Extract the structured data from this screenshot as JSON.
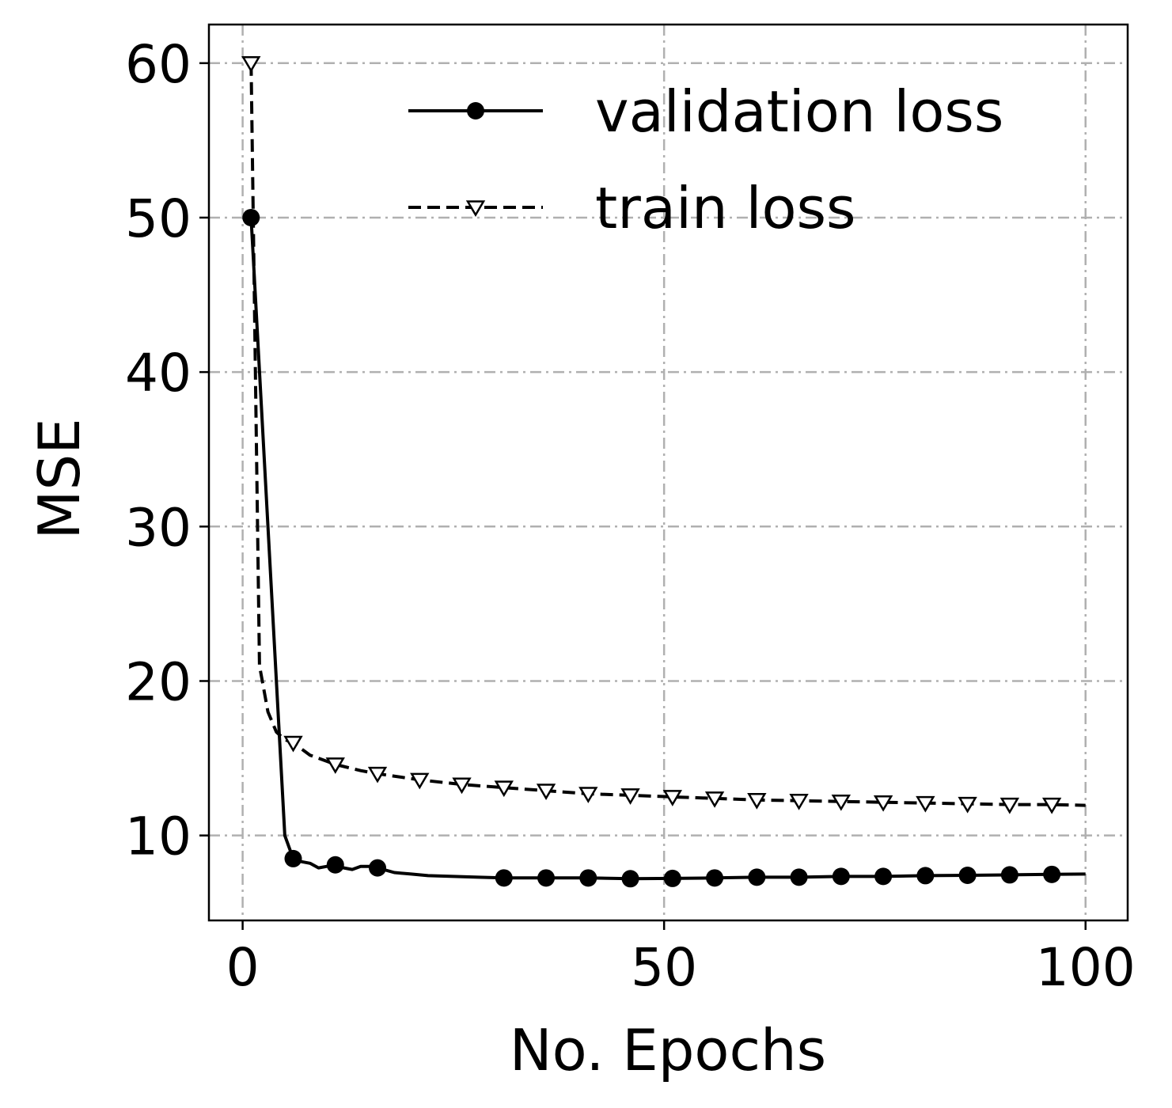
{
  "chart_data": {
    "type": "line",
    "title": "",
    "xlabel": "No. Epochs",
    "ylabel": "MSE",
    "xlim": [
      -4,
      105
    ],
    "ylim": [
      4.5,
      62.5
    ],
    "xticks": [
      0,
      50,
      100
    ],
    "yticks": [
      10,
      20,
      30,
      40,
      50,
      60
    ],
    "grid": true,
    "legend_position": "top-right",
    "series": [
      {
        "name": "validation loss",
        "style": "solid",
        "marker": "filled-circle",
        "color": "#000000",
        "x": [
          1,
          5,
          6,
          7,
          8,
          9,
          10,
          11,
          12,
          13,
          14,
          15,
          16,
          18,
          20,
          22,
          25,
          28,
          31,
          36,
          41,
          46,
          51,
          56,
          61,
          66,
          71,
          76,
          81,
          86,
          91,
          96,
          100
        ],
        "y": [
          50.0,
          10.0,
          8.5,
          8.3,
          8.2,
          7.9,
          8.0,
          8.1,
          7.9,
          7.8,
          8.0,
          8.0,
          7.9,
          7.6,
          7.5,
          7.4,
          7.35,
          7.3,
          7.25,
          7.25,
          7.25,
          7.2,
          7.22,
          7.25,
          7.3,
          7.3,
          7.35,
          7.35,
          7.4,
          7.42,
          7.45,
          7.48,
          7.5
        ]
      },
      {
        "name": "train loss",
        "style": "dashed",
        "marker": "open-triangle-down",
        "color": "#000000",
        "x": [
          1,
          2,
          3,
          4,
          5,
          6,
          8,
          11,
          14,
          16,
          21,
          26,
          31,
          36,
          41,
          46,
          51,
          56,
          61,
          66,
          71,
          76,
          81,
          86,
          91,
          96,
          100
        ],
        "y": [
          60.0,
          21.0,
          18.0,
          16.7,
          16.2,
          16.0,
          15.2,
          14.6,
          14.2,
          14.0,
          13.6,
          13.3,
          13.1,
          12.9,
          12.7,
          12.6,
          12.5,
          12.4,
          12.3,
          12.25,
          12.2,
          12.15,
          12.1,
          12.05,
          12.0,
          12.0,
          11.95
        ]
      }
    ]
  }
}
